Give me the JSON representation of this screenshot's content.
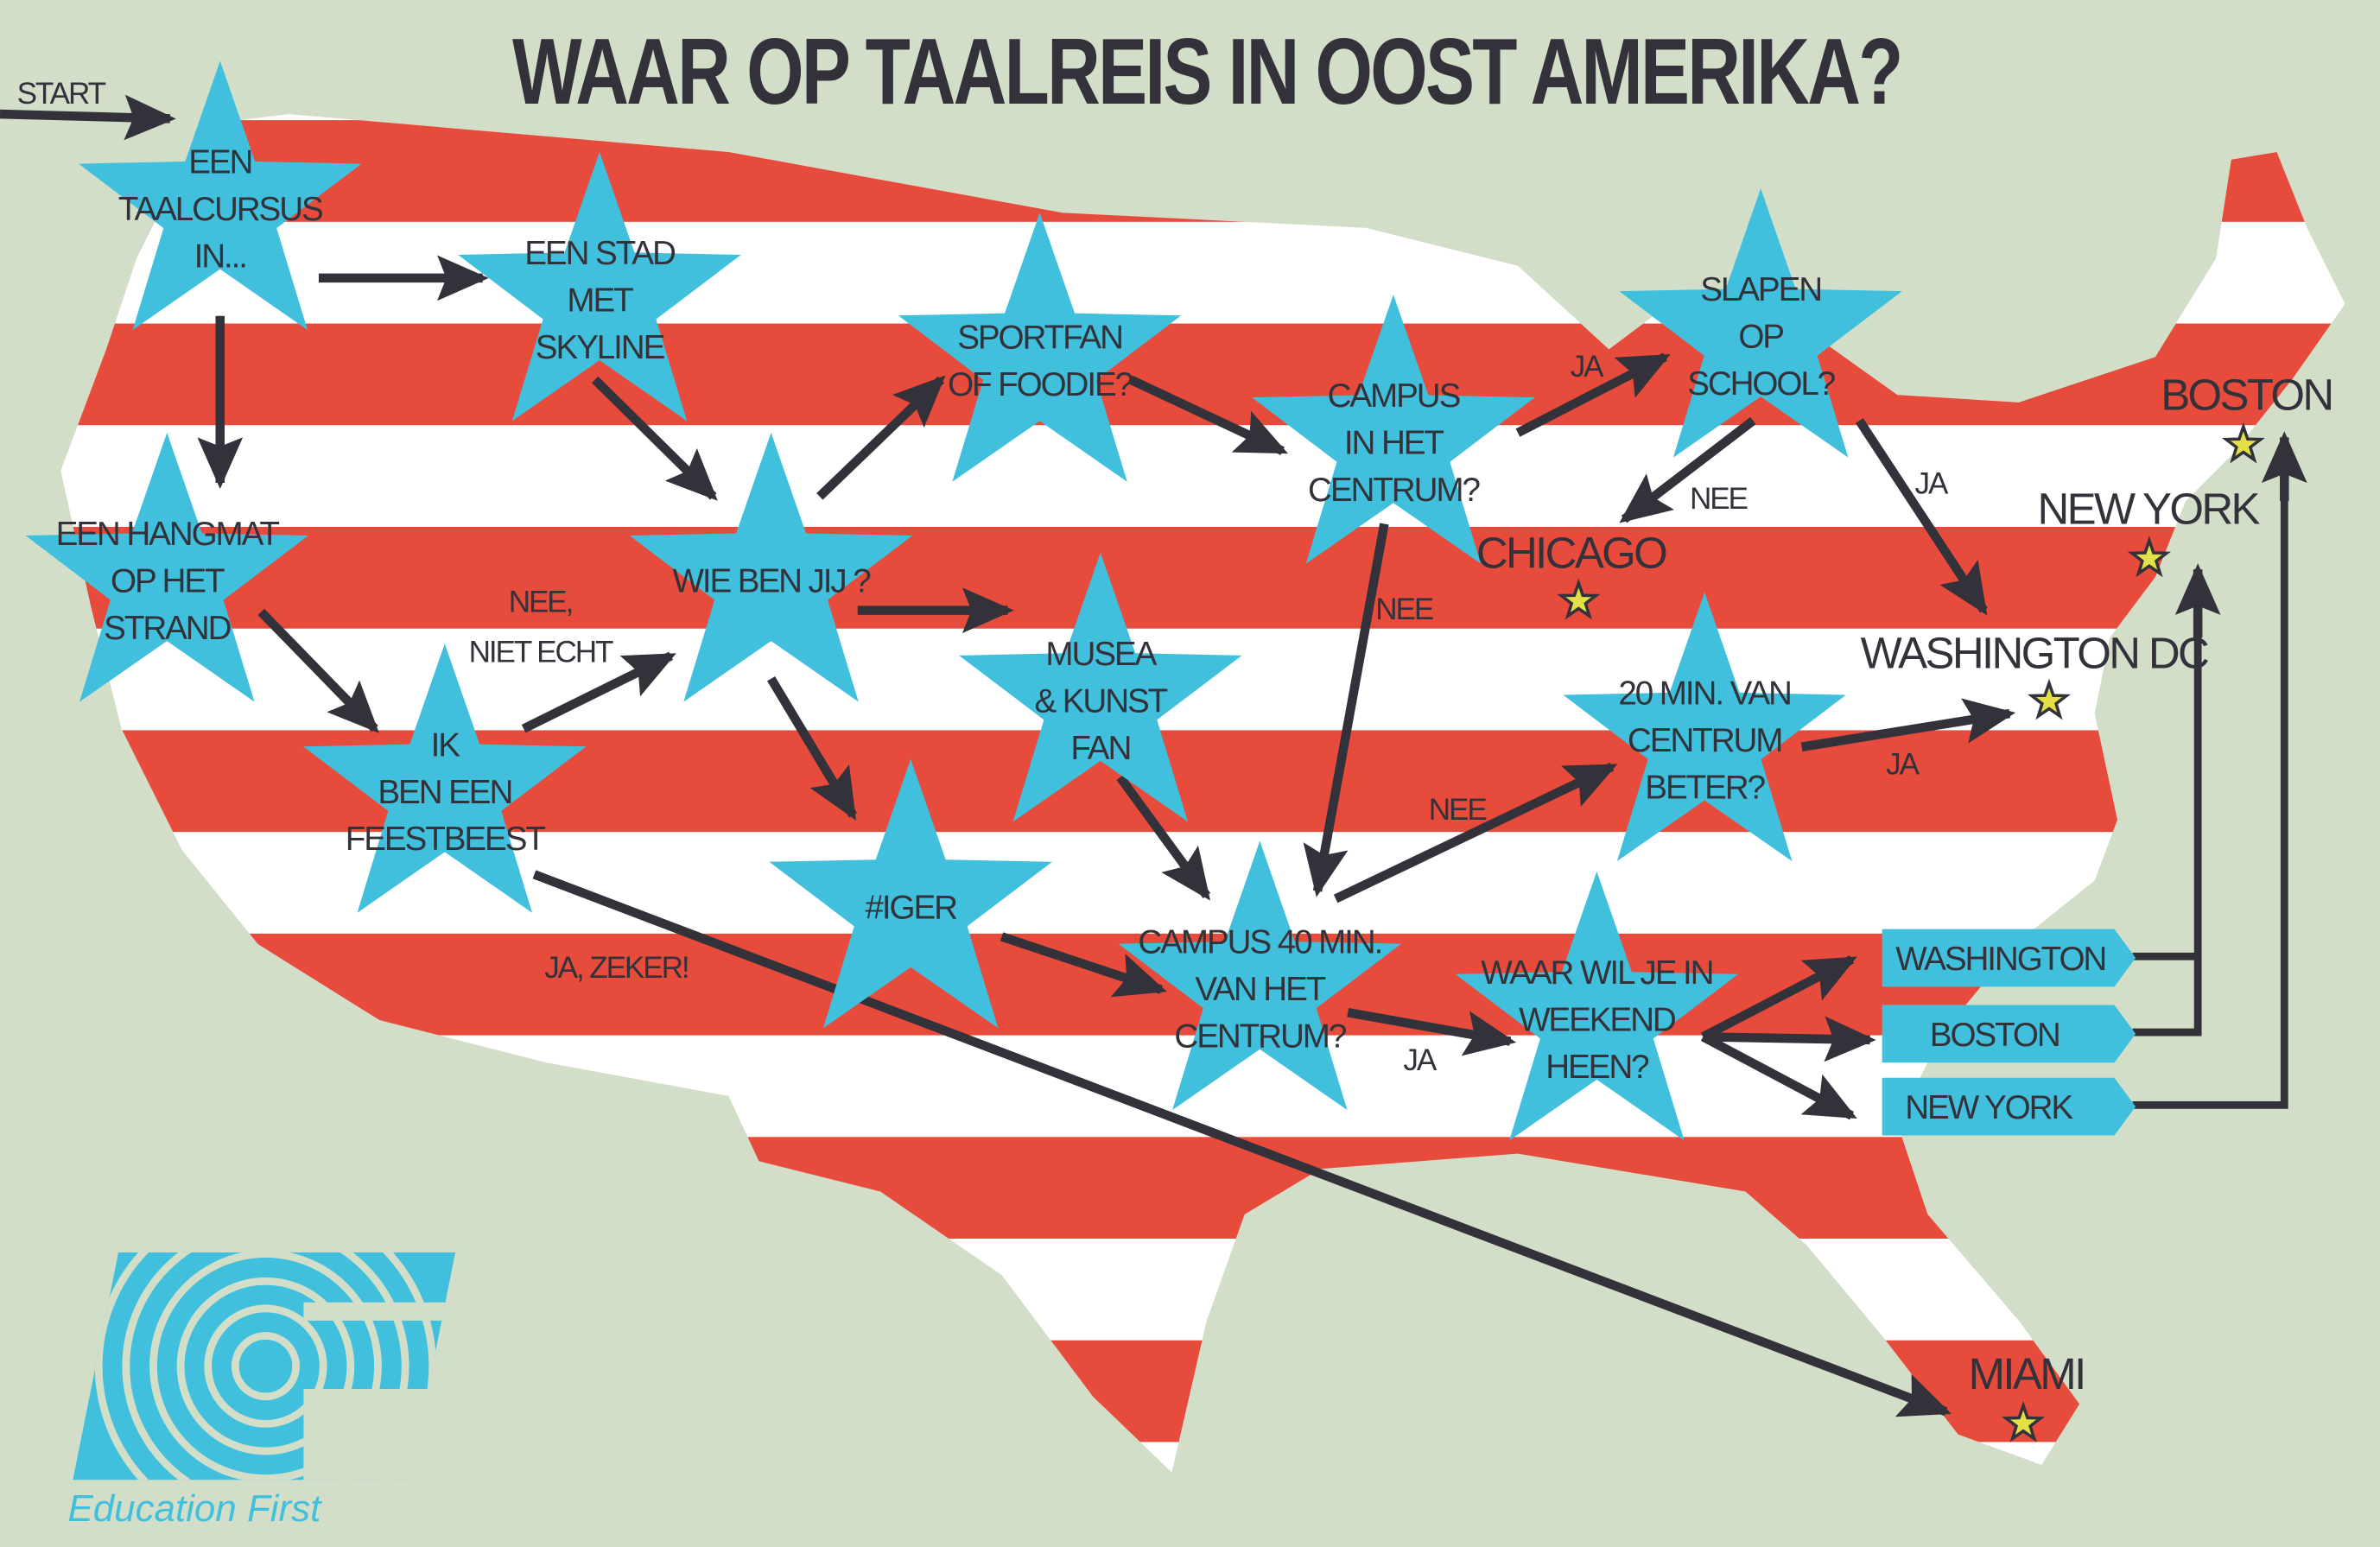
{
  "title": "WAAR OP TAALREIS IN OOST AMERIKA?",
  "start_label": "START",
  "colors": {
    "background": "#d3dec9",
    "stripe_red": "#e64b3c",
    "stripe_white": "#ffffff",
    "star_blue": "#40c0dd",
    "ink": "#33323a",
    "city_star": "#e2e046"
  },
  "stars": [
    {
      "lines": [
        "EEN",
        "TAALCURSUS",
        "IN..."
      ]
    },
    {
      "lines": [
        "EEN STAD",
        "MET",
        "SKYLINE"
      ]
    },
    {
      "lines": [
        "SPORTFAN",
        "OF FOODIE?"
      ]
    },
    {
      "lines": [
        "CAMPUS",
        "IN HET",
        "CENTRUM?"
      ]
    },
    {
      "lines": [
        "SLAPEN",
        "OP",
        "SCHOOL?"
      ]
    },
    {
      "lines": [
        "EEN HANGMAT",
        "OP HET",
        "STRAND"
      ]
    },
    {
      "lines": [
        "WIE BEN JIJ ?"
      ]
    },
    {
      "lines": [
        "MUSEA",
        "& KUNST",
        "FAN"
      ]
    },
    {
      "lines": [
        "IK",
        "BEN EEN",
        "FEESTBEEST"
      ]
    },
    {
      "lines": [
        "#IGER"
      ]
    },
    {
      "lines": [
        "CAMPUS 40 MIN.",
        "VAN HET",
        "CENTRUM?"
      ]
    },
    {
      "lines": [
        "20 MIN. VAN",
        "CENTRUM",
        "BETER?"
      ]
    },
    {
      "lines": [
        "WAAR WIL JE IN",
        "WEEKEND",
        "HEEN?"
      ]
    }
  ],
  "arrow_labels": {
    "ja_slapen": "JA",
    "nee_chicago": "NEE",
    "ja_washington": "JA",
    "nee_campus": "NEE",
    "nee_niet_echt": [
      "NEE,",
      "NIET ECHT"
    ],
    "ja_zeker": "JA, ZEKER!",
    "nee_20min": "NEE",
    "ja_20min": "JA",
    "ja_weekend": "JA"
  },
  "cities": [
    "BOSTON",
    "NEW YORK",
    "CHICAGO",
    "WASHINGTON DC",
    "MIAMI"
  ],
  "weekend_options": [
    "WASHINGTON",
    "BOSTON",
    "NEW YORK"
  ],
  "logo": {
    "text": "Education First",
    "mark": "EF"
  }
}
